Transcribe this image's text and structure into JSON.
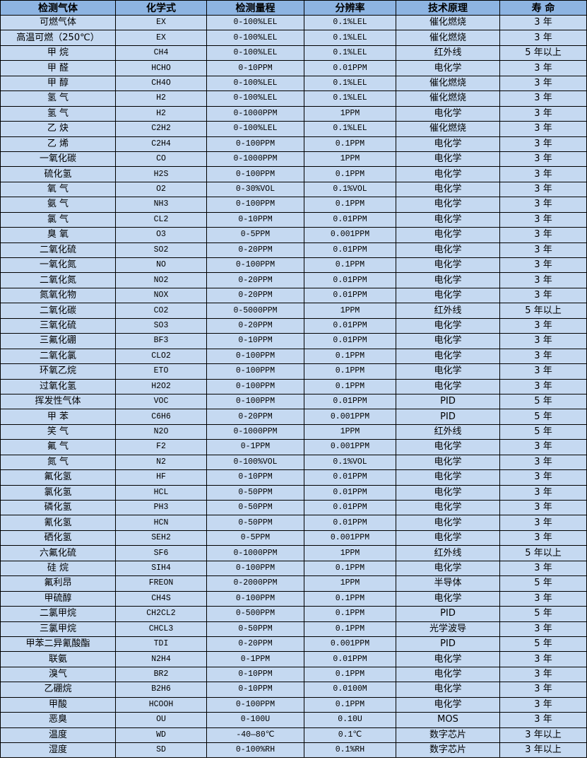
{
  "table": {
    "headers": [
      "检测气体",
      "化学式",
      "检测量程",
      "分辨率",
      "技术原理",
      "寿 命"
    ],
    "rows": [
      [
        "可燃气体",
        "EX",
        "0-100%LEL",
        "0.1%LEL",
        "催化燃烧",
        "3 年"
      ],
      [
        "高温可燃（250℃）",
        "EX",
        "0-100%LEL",
        "0.1%LEL",
        "催化燃烧",
        "3 年"
      ],
      [
        "甲 烷",
        "CH4",
        "0-100%LEL",
        "0.1%LEL",
        "红外线",
        "5 年以上"
      ],
      [
        "甲 醛",
        "HCHO",
        "0-10PPM",
        "0.01PPM",
        "电化学",
        "3 年"
      ],
      [
        "甲 醇",
        "CH4O",
        "0-100%LEL",
        "0.1%LEL",
        "催化燃烧",
        "3 年"
      ],
      [
        "氢 气",
        "H2",
        "0-100%LEL",
        "0.1%LEL",
        "催化燃烧",
        "3 年"
      ],
      [
        "氢 气",
        "H2",
        "0-1000PPM",
        "1PPM",
        "电化学",
        "3 年"
      ],
      [
        "乙 炔",
        "C2H2",
        "0-100%LEL",
        "0.1%LEL",
        "催化燃烧",
        "3 年"
      ],
      [
        "乙 烯",
        "C2H4",
        "0-100PPM",
        "0.1PPM",
        "电化学",
        "3 年"
      ],
      [
        "一氧化碳",
        "CO",
        "0-1000PPM",
        "1PPM",
        "电化学",
        "3 年"
      ],
      [
        "硫化氢",
        "H2S",
        "0-100PPM",
        "0.1PPM",
        "电化学",
        "3 年"
      ],
      [
        "氧 气",
        "O2",
        "0-30%VOL",
        "0.1%VOL",
        "电化学",
        "3 年"
      ],
      [
        "氨 气",
        "NH3",
        "0-100PPM",
        "0.1PPM",
        "电化学",
        "3 年"
      ],
      [
        "氯 气",
        "CL2",
        "0-10PPM",
        "0.01PPM",
        "电化学",
        "3 年"
      ],
      [
        "臭 氧",
        "O3",
        "0-5PPM",
        "0.001PPM",
        "电化学",
        "3 年"
      ],
      [
        "二氧化硫",
        "SO2",
        "0-20PPM",
        "0.01PPM",
        "电化学",
        "3 年"
      ],
      [
        "一氧化氮",
        "NO",
        "0-100PPM",
        "0.1PPM",
        "电化学",
        "3 年"
      ],
      [
        "二氧化氮",
        "NO2",
        "0-20PPM",
        "0.01PPM",
        "电化学",
        "3 年"
      ],
      [
        "氮氧化物",
        "NOX",
        "0-20PPM",
        "0.01PPM",
        "电化学",
        "3 年"
      ],
      [
        "二氧化碳",
        "CO2",
        "0-5000PPM",
        "1PPM",
        "红外线",
        "5 年以上"
      ],
      [
        "三氧化硫",
        "SO3",
        "0-20PPM",
        "0.01PPM",
        "电化学",
        "3 年"
      ],
      [
        "三氟化硼",
        "BF3",
        "0-10PPM",
        "0.01PPM",
        "电化学",
        "3 年"
      ],
      [
        "二氧化氯",
        "CLO2",
        "0-100PPM",
        "0.1PPM",
        "电化学",
        "3 年"
      ],
      [
        "环氧乙烷",
        "ETO",
        "0-100PPM",
        "0.1PPM",
        "电化学",
        "3 年"
      ],
      [
        "过氧化氢",
        "H2O2",
        "0-100PPM",
        "0.1PPM",
        "电化学",
        "3 年"
      ],
      [
        "挥发性气体",
        "VOC",
        "0-100PPM",
        "0.01PPM",
        "PID",
        "5 年"
      ],
      [
        "甲 苯",
        "C6H6",
        "0-20PPM",
        "0.001PPM",
        "PID",
        "5 年"
      ],
      [
        "笑 气",
        "N2O",
        "0-1000PPM",
        "1PPM",
        "红外线",
        "5 年"
      ],
      [
        "氟 气",
        "F2",
        "0-1PPM",
        "0.001PPM",
        "电化学",
        "3 年"
      ],
      [
        "氮 气",
        "N2",
        "0-100%VOL",
        "0.1%VOL",
        "电化学",
        "3 年"
      ],
      [
        "氟化氢",
        "HF",
        "0-10PPM",
        "0.01PPM",
        "电化学",
        "3 年"
      ],
      [
        "氯化氢",
        "HCL",
        "0-50PPM",
        "0.01PPM",
        "电化学",
        "3 年"
      ],
      [
        "磷化氢",
        "PH3",
        "0-50PPM",
        "0.01PPM",
        "电化学",
        "3 年"
      ],
      [
        "氰化氢",
        "HCN",
        "0-50PPM",
        "0.01PPM",
        "电化学",
        "3 年"
      ],
      [
        "硒化氢",
        "SEH2",
        "0-5PPM",
        "0.001PPM",
        "电化学",
        "3 年"
      ],
      [
        "六氟化硫",
        "SF6",
        "0-1000PPM",
        "1PPM",
        "红外线",
        "5 年以上"
      ],
      [
        "硅 烷",
        "SIH4",
        "0-100PPM",
        "0.1PPM",
        "电化学",
        "3 年"
      ],
      [
        "氟利昂",
        "FREON",
        "0-2000PPM",
        "1PPM",
        "半导体",
        "5 年"
      ],
      [
        "甲硫醇",
        "CH4S",
        "0-100PPM",
        "0.1PPM",
        "电化学",
        "3 年"
      ],
      [
        "二氯甲烷",
        "CH2CL2",
        "0-500PPM",
        "0.1PPM",
        "PID",
        "5 年"
      ],
      [
        "三氯甲烷",
        "CHCL3",
        "0-50PPM",
        "0.1PPM",
        "光学波导",
        "3 年"
      ],
      [
        "甲苯二异氰酸酯",
        "TDI",
        "0-20PPM",
        "0.001PPM",
        "PID",
        "5 年"
      ],
      [
        "联氨",
        "N2H4",
        "0-1PPM",
        "0.01PPM",
        "电化学",
        "3 年"
      ],
      [
        "溴气",
        "BR2",
        "0-10PPM",
        "0.1PPM",
        "电化学",
        "3 年"
      ],
      [
        "乙硼烷",
        "B2H6",
        "0-10PPM",
        "0.0100M",
        "电化学",
        "3 年"
      ],
      [
        "甲酸",
        "HCOOH",
        "0-100PPM",
        "0.1PPM",
        "电化学",
        "3 年"
      ],
      [
        "恶臭",
        "OU",
        "0-100U",
        "0.10U",
        "MOS",
        "3 年"
      ],
      [
        "温度",
        "WD",
        "-40—80℃",
        "0.1℃",
        "数字芯片",
        "3 年以上"
      ],
      [
        "湿度",
        "SD",
        "0-100%RH",
        "0.1%RH",
        "数字芯片",
        "3 年以上"
      ]
    ]
  }
}
